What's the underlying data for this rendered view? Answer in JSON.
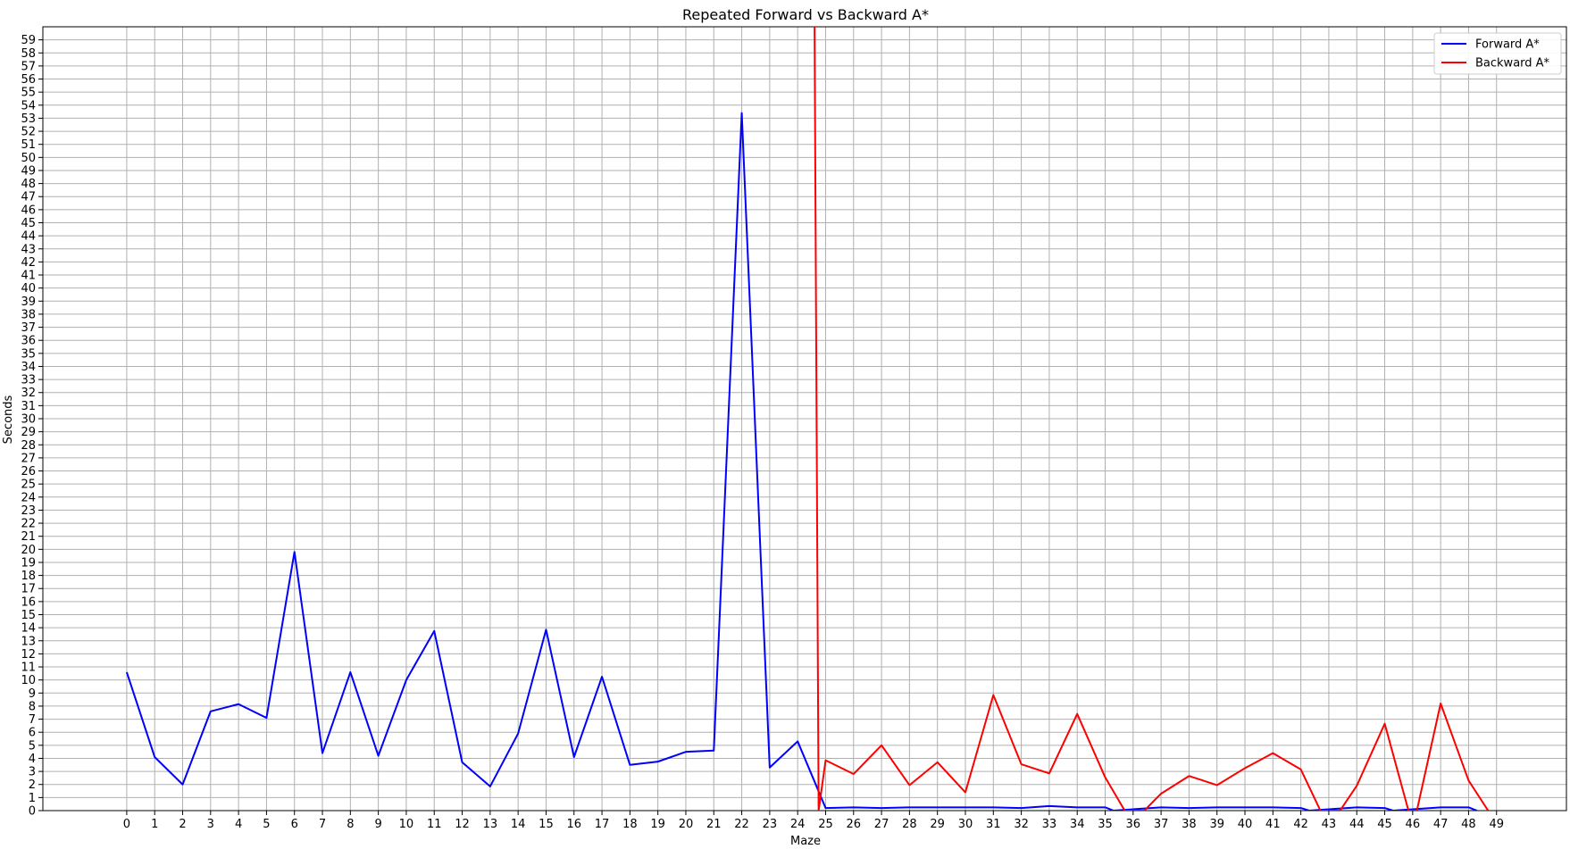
{
  "chart_data": {
    "type": "line",
    "title": "Repeated Forward vs Backward A*",
    "xlabel": "Maze",
    "ylabel": "Seconds",
    "x": [
      0,
      1,
      2,
      3,
      4,
      5,
      6,
      7,
      8,
      9,
      10,
      11,
      12,
      13,
      14,
      15,
      16,
      17,
      18,
      19,
      20,
      21,
      22,
      23,
      24,
      25,
      26,
      27,
      28,
      29,
      30,
      31,
      32,
      33,
      34,
      35,
      36,
      37,
      38,
      39,
      40,
      41,
      42,
      43,
      44,
      45,
      46,
      47,
      48,
      49
    ],
    "xlim": [
      -3,
      51.5
    ],
    "ylim": [
      0,
      60
    ],
    "yticks_max": 59,
    "grid": true,
    "legend_position": "top-right",
    "series": [
      {
        "name": "Forward A*",
        "color": "#0000ff",
        "points": [
          [
            0,
            10.6
          ],
          [
            1,
            4.1
          ],
          [
            2,
            2.0
          ],
          [
            3,
            7.6
          ],
          [
            4,
            8.15
          ],
          [
            5,
            7.1
          ],
          [
            6,
            19.8
          ],
          [
            7,
            4.4
          ],
          [
            8,
            10.6
          ],
          [
            9,
            4.2
          ],
          [
            10,
            10.0
          ],
          [
            11,
            13.75
          ],
          [
            12,
            3.7
          ],
          [
            13,
            1.85
          ],
          [
            14,
            5.9
          ],
          [
            15,
            13.85
          ],
          [
            16,
            4.1
          ],
          [
            17,
            10.25
          ],
          [
            18,
            3.5
          ],
          [
            19,
            3.75
          ],
          [
            20,
            4.5
          ],
          [
            21,
            4.6
          ],
          [
            22,
            53.4
          ],
          [
            23,
            3.3
          ],
          [
            24,
            5.3
          ],
          [
            25,
            0.2
          ],
          [
            26,
            0.25
          ],
          [
            27,
            0.2
          ],
          [
            28,
            0.25
          ],
          [
            29,
            0.25
          ],
          [
            30,
            0.25
          ],
          [
            31,
            0.25
          ],
          [
            32,
            0.2
          ],
          [
            33,
            0.35
          ],
          [
            34,
            0.25
          ],
          [
            35,
            0.25
          ],
          [
            35.3,
            0.0
          ],
          [
            37,
            0.25
          ],
          [
            38,
            0.2
          ],
          [
            39,
            0.25
          ],
          [
            40,
            0.25
          ],
          [
            41,
            0.25
          ],
          [
            42,
            0.2
          ],
          [
            42.3,
            0.0
          ],
          [
            44,
            0.25
          ],
          [
            45,
            0.2
          ],
          [
            45.3,
            0.0
          ],
          [
            47,
            0.25
          ],
          [
            48,
            0.25
          ],
          [
            48.3,
            0.0
          ]
        ]
      },
      {
        "name": "Backward A*",
        "color": "#ff0000",
        "points": [
          [
            24.6,
            62
          ],
          [
            24.75,
            0
          ],
          [
            25,
            3.85
          ],
          [
            26,
            2.8
          ],
          [
            27,
            5.0
          ],
          [
            28,
            1.95
          ],
          [
            29,
            3.7
          ],
          [
            30,
            1.4
          ],
          [
            31,
            8.85
          ],
          [
            32,
            3.55
          ],
          [
            33,
            2.85
          ],
          [
            34,
            7.4
          ],
          [
            35,
            2.55
          ],
          [
            35.7,
            0.0
          ],
          [
            36.4,
            0.0
          ],
          [
            37,
            1.3
          ],
          [
            38,
            2.65
          ],
          [
            39,
            1.95
          ],
          [
            40,
            3.25
          ],
          [
            41,
            4.4
          ],
          [
            42,
            3.15
          ],
          [
            42.7,
            0.0
          ],
          [
            43.4,
            0.0
          ],
          [
            44,
            1.9
          ],
          [
            45,
            6.65
          ],
          [
            45.85,
            0.0
          ],
          [
            46.15,
            0.0
          ],
          [
            47,
            8.2
          ],
          [
            48,
            2.3
          ],
          [
            48.7,
            0.0
          ]
        ]
      }
    ]
  }
}
